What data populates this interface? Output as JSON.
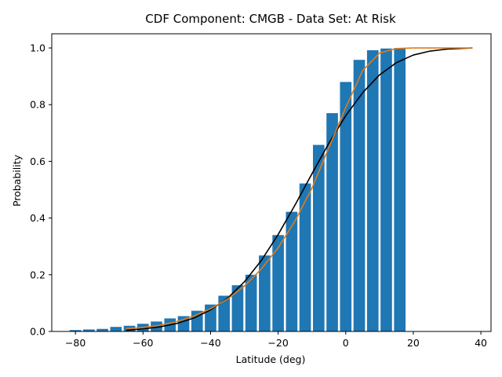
{
  "chart_data": {
    "type": "bar",
    "title": "CDF Component: CMGB - Data Set: At Risk",
    "xlabel": "Latitude (deg)",
    "ylabel": "Probability",
    "xlim": [
      -87,
      43
    ],
    "ylim": [
      0,
      1.05
    ],
    "xticks": [
      -80,
      -60,
      -40,
      -20,
      0,
      20,
      40
    ],
    "yticks": [
      0.0,
      0.2,
      0.4,
      0.6,
      0.8,
      1.0
    ],
    "ytick_labels": [
      "0.0",
      "0.2",
      "0.4",
      "0.6",
      "0.8",
      "1.0"
    ],
    "bar_width": 3.4,
    "bar_color": "#1f77b4",
    "bars": {
      "x": [
        -80,
        -76,
        -72,
        -68,
        -64,
        -60,
        -56,
        -52,
        -48,
        -44,
        -40,
        -36,
        -32,
        -28,
        -24,
        -20,
        -16,
        -12,
        -8,
        -4,
        0,
        4,
        8,
        12,
        16
      ],
      "values": [
        0.005,
        0.007,
        0.009,
        0.016,
        0.02,
        0.027,
        0.035,
        0.046,
        0.054,
        0.073,
        0.095,
        0.126,
        0.163,
        0.2,
        0.268,
        0.34,
        0.422,
        0.522,
        0.658,
        0.77,
        0.88,
        0.958,
        0.992,
        0.998,
        1.0
      ]
    },
    "curves": [
      {
        "color": "#000000",
        "x": [
          -65,
          -60,
          -55,
          -50,
          -45,
          -40,
          -35,
          -30,
          -25,
          -20,
          -15,
          -10,
          -5,
          0,
          5,
          10,
          15,
          20,
          25,
          30,
          37.5
        ],
        "values": [
          0.004,
          0.009,
          0.016,
          0.028,
          0.047,
          0.076,
          0.117,
          0.175,
          0.25,
          0.342,
          0.446,
          0.556,
          0.664,
          0.761,
          0.842,
          0.905,
          0.948,
          0.975,
          0.989,
          0.996,
          1.0
        ]
      },
      {
        "color": "#e07b1a",
        "x": [
          -65,
          -60,
          -55,
          -50,
          -45,
          -40,
          -35,
          -30,
          -25,
          -20,
          -15,
          -10,
          -5,
          0,
          5,
          10,
          15,
          20,
          25,
          30,
          37.5
        ],
        "values": [
          0.01,
          0.014,
          0.022,
          0.035,
          0.054,
          0.08,
          0.114,
          0.16,
          0.22,
          0.295,
          0.39,
          0.505,
          0.648,
          0.79,
          0.92,
          0.982,
          0.998,
          1.0,
          1.0,
          1.0,
          1.0
        ]
      }
    ],
    "grid": false,
    "legend": "none"
  }
}
